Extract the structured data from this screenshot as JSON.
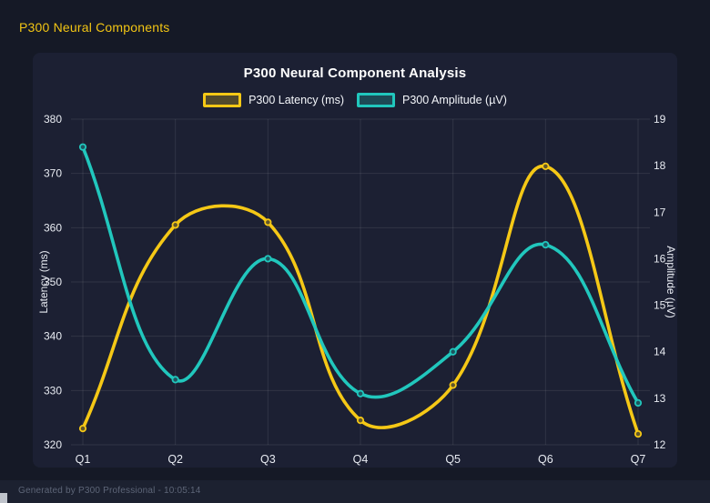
{
  "header": {
    "title": "P300 Neural Components"
  },
  "chart_data": {
    "type": "line",
    "title": "P300 Neural Component Analysis",
    "categories": [
      "Q1",
      "Q2",
      "Q3",
      "Q4",
      "Q5",
      "Q6",
      "Q7"
    ],
    "series": [
      {
        "name": "P300 Latency (ms)",
        "axis": "left",
        "color": "#f5c816",
        "values": [
          323,
          360.5,
          361,
          324.5,
          331,
          371.3,
          322
        ]
      },
      {
        "name": "P300 Amplitude (µV)",
        "axis": "right",
        "color": "#21c7bd",
        "values": [
          18.4,
          13.4,
          16.0,
          13.1,
          14.0,
          16.3,
          12.9
        ]
      }
    ],
    "left_axis": {
      "label": "Latency (ms)",
      "min": 320,
      "max": 380,
      "step": 10
    },
    "right_axis": {
      "label": "Amplitude (µV)",
      "min": 12,
      "max": 19,
      "step": 1
    },
    "grid": true,
    "legend_position": "top",
    "smoothing": "cubic-tension-0.4"
  },
  "footer": {
    "text": "Generated by P300 Professional - 10:05:14"
  }
}
